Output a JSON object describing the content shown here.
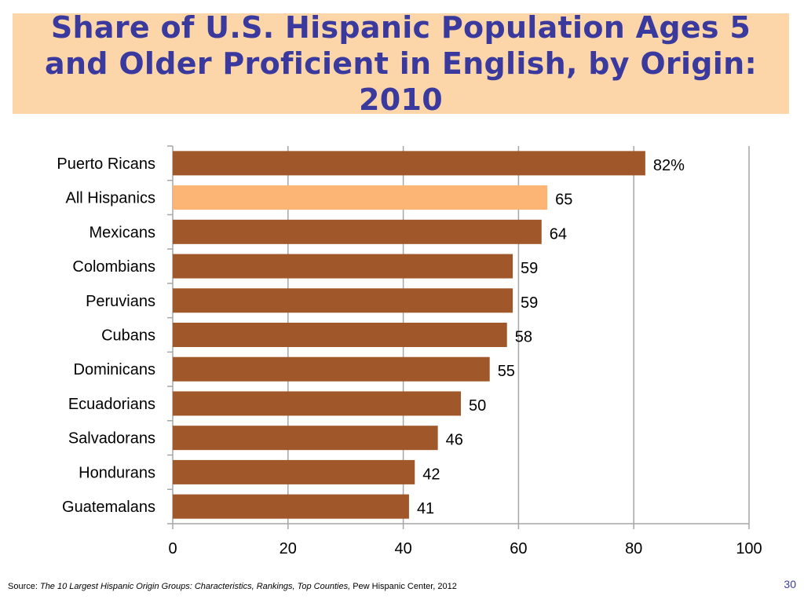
{
  "slide": {
    "title": "Share of U.S. Hispanic Population Ages 5 and Older Proficient in English, by Origin: 2010",
    "source_prefix": "Source: ",
    "source_title": "The 10 Largest Hispanic Origin Groups: Characteristics, Rankings, Top Counties,",
    "source_suffix": " Pew Hispanic Center, 2012",
    "page_number": "30"
  },
  "colors": {
    "bar": "#a0582a",
    "bar_highlight": "#fcb574",
    "title_bg": "#fcd5a9",
    "title_text": "#3a3a9e",
    "grid": "#a6a6a6"
  },
  "chart_data": {
    "type": "bar",
    "orientation": "horizontal",
    "categories": [
      "Puerto Ricans",
      "All Hispanics",
      "Mexicans",
      "Colombians",
      "Peruvians",
      "Cubans",
      "Dominicans",
      "Ecuadorians",
      "Salvadorans",
      "Hondurans",
      "Guatemalans"
    ],
    "values": [
      82,
      65,
      64,
      59,
      59,
      58,
      55,
      50,
      46,
      42,
      41
    ],
    "data_labels": [
      "82%",
      "65",
      "64",
      "59",
      "59",
      "58",
      "55",
      "50",
      "46",
      "42",
      "41"
    ],
    "highlight_category": "All Hispanics",
    "xlim": [
      0,
      100
    ],
    "xticks": [
      0,
      20,
      40,
      60,
      80,
      100
    ],
    "xtick_labels": [
      "0",
      "20",
      "40",
      "60",
      "80",
      "100"
    ],
    "grid": "vertical",
    "legend": "none"
  }
}
